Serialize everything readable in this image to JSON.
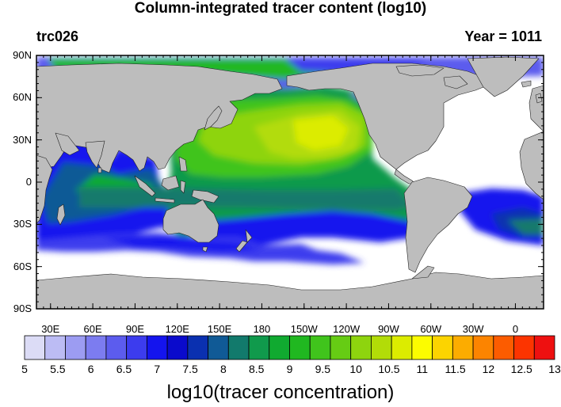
{
  "title": "Column-integrated tracer content (log10)",
  "left_string": "trc026",
  "right_string": "Year = 1011",
  "colors": {
    "land": "#bdbdbd",
    "missing": "#ffffff",
    "coast": "#222222"
  },
  "map": {
    "projection": "cylindrical equidistant",
    "lon_range": [
      20,
      380
    ],
    "lat_range": [
      -90,
      90
    ],
    "lat_tick_labels": [
      "90N",
      "60N",
      "30N",
      "0",
      "30S",
      "60S",
      "90S"
    ],
    "lon_tick_labels": [
      "30E",
      "60E",
      "90E",
      "120E",
      "150E",
      "180",
      "150W",
      "120W",
      "90W",
      "60W",
      "30W",
      "0"
    ]
  },
  "colorbar": {
    "title": "log10(tracer concentration)",
    "labels": [
      "5",
      "5.5",
      "6",
      "6.5",
      "7",
      "7.5",
      "8",
      "8.5",
      "9",
      "9.5",
      "10",
      "10.5",
      "11",
      "11.5",
      "12",
      "12.5",
      "13"
    ],
    "colors": [
      "#dcdcf6",
      "#bcbcf4",
      "#9c9cf2",
      "#7c7cf0",
      "#5c5cee",
      "#3c3cee",
      "#1414ee",
      "#0a0acc",
      "#0a30b0",
      "#105a96",
      "#127a6c",
      "#109a4c",
      "#10aa30",
      "#20b820",
      "#40c41c",
      "#66cc14",
      "#8ed40e",
      "#b2dc08",
      "#dcec00",
      "#fcfc00",
      "#fcd400",
      "#fcac00",
      "#fc8400",
      "#fc5c00",
      "#fc3400",
      "#ee1010"
    ]
  }
}
